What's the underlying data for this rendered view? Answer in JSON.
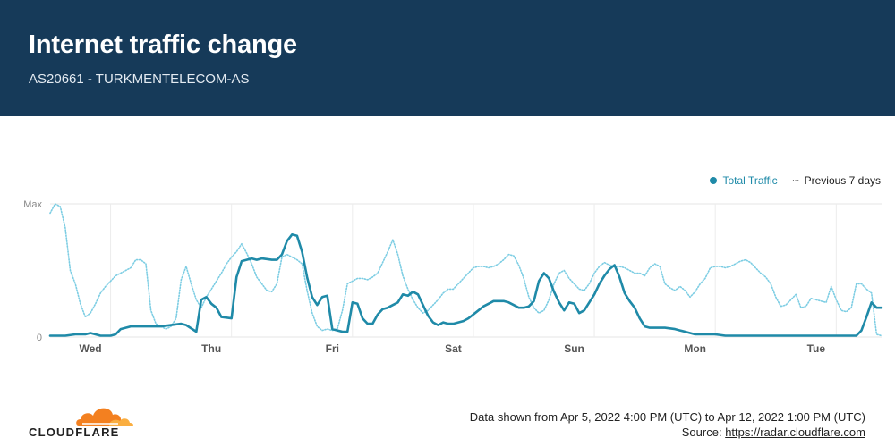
{
  "header": {
    "title": "Internet traffic change",
    "subtitle": "AS20661 - TURKMENTELECOM-AS"
  },
  "legend": {
    "total_label": "Total Traffic",
    "prev_mark": "···",
    "prev_label": "Previous 7 days"
  },
  "colors": {
    "header_bg": "#163a59",
    "total": "#1f8aa8",
    "previous": "#7ccde3"
  },
  "footer": {
    "range_text": "Data shown from Apr 5, 2022 4:00 PM (UTC) to Apr 12, 2022 1:00 PM (UTC)",
    "source_label": "Source: ",
    "source_link": "https://radar.cloudflare.com"
  },
  "logo": {
    "text": "CLOUDFLARE"
  },
  "chart_data": {
    "type": "line",
    "title": "Internet traffic change",
    "xlabel": "",
    "ylabel": "",
    "y_tick_labels": [
      "Max",
      "0"
    ],
    "ylim": [
      0,
      100
    ],
    "xlim": [
      0,
      165
    ],
    "day_ticks": [
      {
        "label": "Wed",
        "x": 8
      },
      {
        "label": "Thu",
        "x": 32
      },
      {
        "label": "Fri",
        "x": 56
      },
      {
        "label": "Sat",
        "x": 80
      },
      {
        "label": "Sun",
        "x": 104
      },
      {
        "label": "Mon",
        "x": 128
      },
      {
        "label": "Tue",
        "x": 152
      }
    ],
    "series": [
      {
        "name": "Total Traffic",
        "style": "solid",
        "points": [
          [
            0,
            1
          ],
          [
            3,
            1
          ],
          [
            5,
            2
          ],
          [
            7,
            2
          ],
          [
            8,
            3
          ],
          [
            10,
            1
          ],
          [
            12,
            1
          ],
          [
            13,
            2
          ],
          [
            14,
            6
          ],
          [
            16,
            8
          ],
          [
            18,
            8
          ],
          [
            20,
            8
          ],
          [
            22,
            8
          ],
          [
            24,
            9
          ],
          [
            26,
            10
          ],
          [
            27,
            9
          ],
          [
            29,
            4
          ],
          [
            30,
            28
          ],
          [
            31,
            30
          ],
          [
            32,
            25
          ],
          [
            33,
            22
          ],
          [
            34,
            15
          ],
          [
            36,
            14
          ],
          [
            37,
            45
          ],
          [
            38,
            57
          ],
          [
            40,
            59
          ],
          [
            41,
            58
          ],
          [
            42,
            59
          ],
          [
            44,
            58
          ],
          [
            45,
            58
          ],
          [
            46,
            62
          ],
          [
            47,
            72
          ],
          [
            48,
            77
          ],
          [
            49,
            76
          ],
          [
            50,
            64
          ],
          [
            51,
            45
          ],
          [
            52,
            30
          ],
          [
            53,
            24
          ],
          [
            54,
            30
          ],
          [
            55,
            31
          ],
          [
            56,
            6
          ],
          [
            57,
            5
          ],
          [
            58,
            4
          ],
          [
            59,
            4
          ],
          [
            60,
            26
          ],
          [
            61,
            25
          ],
          [
            62,
            14
          ],
          [
            63,
            10
          ],
          [
            64,
            10
          ],
          [
            65,
            17
          ],
          [
            66,
            21
          ],
          [
            67,
            22
          ],
          [
            68,
            24
          ],
          [
            69,
            26
          ],
          [
            70,
            32
          ],
          [
            71,
            31
          ],
          [
            72,
            34
          ],
          [
            73,
            32
          ],
          [
            74,
            24
          ],
          [
            75,
            16
          ],
          [
            76,
            11
          ],
          [
            77,
            9
          ],
          [
            78,
            11
          ],
          [
            79,
            10
          ],
          [
            80,
            10
          ],
          [
            81,
            11
          ],
          [
            82,
            12
          ],
          [
            83,
            14
          ],
          [
            84,
            17
          ],
          [
            85,
            20
          ],
          [
            86,
            23
          ],
          [
            87,
            25
          ],
          [
            88,
            27
          ],
          [
            89,
            27
          ],
          [
            90,
            27
          ],
          [
            91,
            26
          ],
          [
            92,
            24
          ],
          [
            93,
            22
          ],
          [
            94,
            22
          ],
          [
            95,
            23
          ],
          [
            96,
            27
          ],
          [
            97,
            42
          ],
          [
            98,
            48
          ],
          [
            99,
            44
          ],
          [
            100,
            34
          ],
          [
            101,
            26
          ],
          [
            102,
            20
          ],
          [
            103,
            26
          ],
          [
            104,
            25
          ],
          [
            105,
            18
          ],
          [
            106,
            20
          ],
          [
            107,
            26
          ],
          [
            108,
            32
          ],
          [
            109,
            40
          ],
          [
            110,
            46
          ],
          [
            111,
            51
          ],
          [
            112,
            54
          ],
          [
            113,
            45
          ],
          [
            114,
            33
          ],
          [
            115,
            27
          ],
          [
            116,
            22
          ],
          [
            117,
            14
          ],
          [
            118,
            8
          ],
          [
            119,
            7
          ],
          [
            120,
            7
          ],
          [
            122,
            7
          ],
          [
            124,
            6
          ],
          [
            125,
            5
          ],
          [
            126,
            4
          ],
          [
            127,
            3
          ],
          [
            128,
            2
          ],
          [
            130,
            2
          ],
          [
            132,
            2
          ],
          [
            134,
            1
          ],
          [
            136,
            1
          ],
          [
            138,
            1
          ],
          [
            140,
            1
          ],
          [
            142,
            1
          ],
          [
            144,
            1
          ],
          [
            146,
            1
          ],
          [
            148,
            1
          ],
          [
            150,
            1
          ],
          [
            152,
            1
          ],
          [
            154,
            1
          ],
          [
            156,
            1
          ],
          [
            158,
            1
          ],
          [
            160,
            1
          ],
          [
            161,
            5
          ],
          [
            162,
            15
          ],
          [
            163,
            26
          ],
          [
            164,
            22
          ],
          [
            165,
            22
          ]
        ]
      },
      {
        "name": "Previous 7 days",
        "style": "dotted",
        "points": [
          [
            0,
            93
          ],
          [
            1,
            100
          ],
          [
            2,
            98
          ],
          [
            3,
            82
          ],
          [
            4,
            50
          ],
          [
            5,
            40
          ],
          [
            6,
            25
          ],
          [
            7,
            15
          ],
          [
            8,
            18
          ],
          [
            9,
            25
          ],
          [
            10,
            33
          ],
          [
            11,
            38
          ],
          [
            12,
            42
          ],
          [
            13,
            46
          ],
          [
            14,
            48
          ],
          [
            15,
            50
          ],
          [
            16,
            52
          ],
          [
            17,
            58
          ],
          [
            18,
            58
          ],
          [
            19,
            55
          ],
          [
            20,
            20
          ],
          [
            21,
            10
          ],
          [
            22,
            8
          ],
          [
            23,
            6
          ],
          [
            24,
            8
          ],
          [
            25,
            14
          ],
          [
            26,
            43
          ],
          [
            27,
            53
          ],
          [
            28,
            40
          ],
          [
            29,
            28
          ],
          [
            30,
            22
          ],
          [
            31,
            30
          ],
          [
            32,
            36
          ],
          [
            33,
            42
          ],
          [
            34,
            48
          ],
          [
            35,
            55
          ],
          [
            36,
            60
          ],
          [
            37,
            64
          ],
          [
            38,
            70
          ],
          [
            39,
            63
          ],
          [
            40,
            55
          ],
          [
            41,
            45
          ],
          [
            42,
            40
          ],
          [
            43,
            35
          ],
          [
            44,
            34
          ],
          [
            45,
            40
          ],
          [
            46,
            60
          ],
          [
            47,
            62
          ],
          [
            48,
            60
          ],
          [
            49,
            58
          ],
          [
            50,
            55
          ],
          [
            51,
            35
          ],
          [
            52,
            18
          ],
          [
            53,
            8
          ],
          [
            54,
            5
          ],
          [
            55,
            6
          ],
          [
            56,
            5
          ],
          [
            57,
            6
          ],
          [
            58,
            20
          ],
          [
            59,
            40
          ],
          [
            60,
            42
          ],
          [
            61,
            44
          ],
          [
            62,
            44
          ],
          [
            63,
            43
          ],
          [
            64,
            45
          ],
          [
            65,
            48
          ],
          [
            66,
            56
          ],
          [
            67,
            64
          ],
          [
            68,
            73
          ],
          [
            69,
            62
          ],
          [
            70,
            46
          ],
          [
            71,
            36
          ],
          [
            72,
            28
          ],
          [
            73,
            22
          ],
          [
            74,
            18
          ],
          [
            75,
            20
          ],
          [
            76,
            24
          ],
          [
            77,
            28
          ],
          [
            78,
            33
          ],
          [
            79,
            36
          ],
          [
            80,
            36
          ],
          [
            81,
            40
          ],
          [
            82,
            44
          ],
          [
            83,
            48
          ],
          [
            84,
            52
          ],
          [
            85,
            53
          ],
          [
            86,
            53
          ],
          [
            87,
            52
          ],
          [
            88,
            53
          ],
          [
            89,
            55
          ],
          [
            90,
            58
          ],
          [
            91,
            62
          ],
          [
            92,
            61
          ],
          [
            93,
            54
          ],
          [
            94,
            44
          ],
          [
            95,
            30
          ],
          [
            96,
            22
          ],
          [
            97,
            18
          ],
          [
            98,
            20
          ],
          [
            99,
            28
          ],
          [
            100,
            40
          ],
          [
            101,
            48
          ],
          [
            102,
            50
          ],
          [
            103,
            44
          ],
          [
            104,
            40
          ],
          [
            105,
            36
          ],
          [
            106,
            35
          ],
          [
            107,
            40
          ],
          [
            108,
            48
          ],
          [
            109,
            53
          ],
          [
            110,
            56
          ],
          [
            111,
            54
          ],
          [
            112,
            53
          ],
          [
            113,
            53
          ],
          [
            114,
            52
          ],
          [
            115,
            50
          ],
          [
            116,
            48
          ],
          [
            117,
            48
          ],
          [
            118,
            46
          ],
          [
            119,
            52
          ],
          [
            120,
            55
          ],
          [
            121,
            53
          ],
          [
            122,
            40
          ],
          [
            123,
            37
          ],
          [
            124,
            35
          ],
          [
            125,
            38
          ],
          [
            126,
            35
          ],
          [
            127,
            30
          ],
          [
            128,
            34
          ],
          [
            129,
            40
          ],
          [
            130,
            44
          ],
          [
            131,
            52
          ],
          [
            132,
            53
          ],
          [
            133,
            53
          ],
          [
            134,
            52
          ],
          [
            135,
            53
          ],
          [
            136,
            55
          ],
          [
            137,
            57
          ],
          [
            138,
            58
          ],
          [
            139,
            56
          ],
          [
            140,
            52
          ],
          [
            141,
            48
          ],
          [
            142,
            45
          ],
          [
            143,
            40
          ],
          [
            144,
            30
          ],
          [
            145,
            23
          ],
          [
            146,
            24
          ],
          [
            147,
            28
          ],
          [
            148,
            32
          ],
          [
            149,
            22
          ],
          [
            150,
            23
          ],
          [
            151,
            29
          ],
          [
            152,
            28
          ],
          [
            153,
            27
          ],
          [
            154,
            26
          ],
          [
            155,
            38
          ],
          [
            156,
            28
          ],
          [
            157,
            20
          ],
          [
            158,
            19
          ],
          [
            159,
            22
          ],
          [
            160,
            40
          ],
          [
            161,
            40
          ],
          [
            162,
            36
          ],
          [
            163,
            33
          ],
          [
            164,
            2
          ],
          [
            165,
            1
          ]
        ]
      }
    ]
  }
}
